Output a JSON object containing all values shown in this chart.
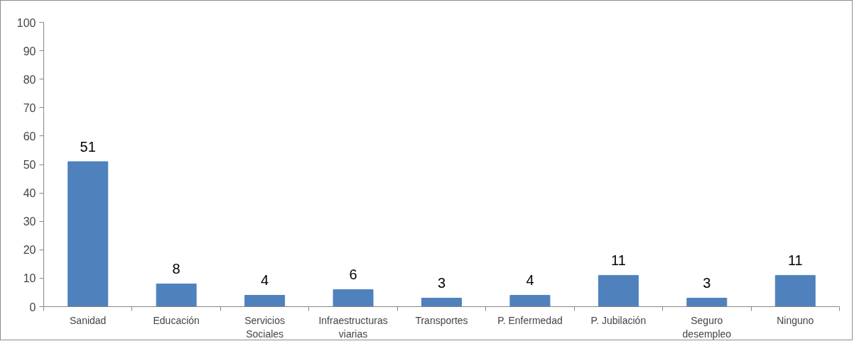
{
  "chart_data": {
    "type": "bar",
    "categories": [
      "Sanidad",
      "Educación",
      "Servicios Sociales",
      "Infraestructuras viarias",
      "Transportes",
      "P. Enfermedad",
      "P. Jubilación",
      "Seguro desempleo",
      "Ninguno"
    ],
    "values": [
      51,
      8,
      4,
      6,
      3,
      4,
      11,
      3,
      11
    ],
    "color": "#4f81bd",
    "ylim": [
      0,
      100
    ],
    "yticks": [
      0,
      10,
      20,
      30,
      40,
      50,
      60,
      70,
      80,
      90,
      100
    ],
    "data_labels": true,
    "grid": false
  }
}
